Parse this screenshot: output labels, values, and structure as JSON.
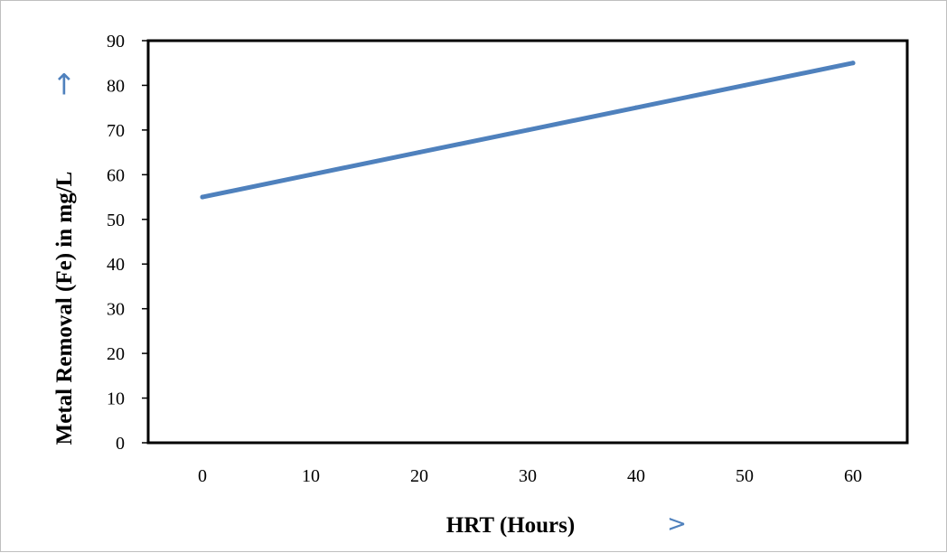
{
  "chart_data": {
    "type": "line",
    "title": "",
    "xlabel": "HRT (Hours)",
    "ylabel": "Metal Removal (Fe) in mg/L",
    "x_ticks": [
      0,
      10,
      20,
      30,
      40,
      50,
      60
    ],
    "y_ticks": [
      0,
      10,
      20,
      30,
      40,
      50,
      60,
      70,
      80,
      90
    ],
    "xlim": [
      -5,
      65
    ],
    "ylim": [
      0,
      90
    ],
    "grid": false,
    "legend": "none",
    "series": [
      {
        "x": [
          0,
          10,
          20,
          30,
          40,
          50,
          60
        ],
        "y": [
          55,
          60,
          65,
          70,
          75,
          80,
          85
        ],
        "color": "#4f81bd"
      }
    ],
    "ylabel_arrow": "→",
    "xlabel_arrow": ">"
  }
}
